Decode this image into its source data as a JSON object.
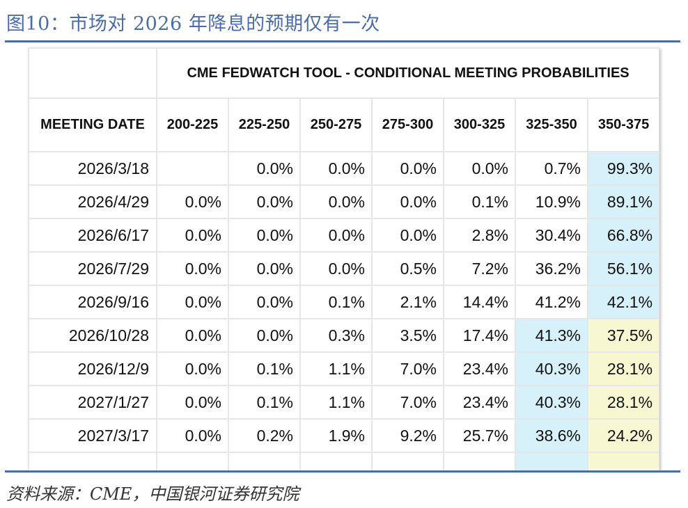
{
  "figure": {
    "title": "图10：市场对 2026 年降息的预期仅有一次",
    "source": "资料来源：CME，中国银河证券研究院"
  },
  "table": {
    "banner": "CME FEDWATCH TOOL - CONDITIONAL MEETING PROBABILITIES",
    "date_header": "MEETING DATE",
    "rate_headers": [
      "200-225",
      "225-250",
      "250-275",
      "275-300",
      "300-325",
      "325-350",
      "350-375"
    ],
    "rows": [
      {
        "date": "2026/3/18",
        "values": [
          "",
          "0.0%",
          "0.0%",
          "0.0%",
          "0.0%",
          "0.7%",
          "99.3%"
        ],
        "highlight": [
          null,
          null,
          null,
          null,
          null,
          null,
          "blue"
        ]
      },
      {
        "date": "2026/4/29",
        "values": [
          "0.0%",
          "0.0%",
          "0.0%",
          "0.0%",
          "0.1%",
          "10.9%",
          "89.1%"
        ],
        "highlight": [
          null,
          null,
          null,
          null,
          null,
          null,
          "blue"
        ]
      },
      {
        "date": "2026/6/17",
        "values": [
          "0.0%",
          "0.0%",
          "0.0%",
          "0.0%",
          "2.8%",
          "30.4%",
          "66.8%"
        ],
        "highlight": [
          null,
          null,
          null,
          null,
          null,
          null,
          "blue"
        ]
      },
      {
        "date": "2026/7/29",
        "values": [
          "0.0%",
          "0.0%",
          "0.0%",
          "0.5%",
          "7.2%",
          "36.2%",
          "56.1%"
        ],
        "highlight": [
          null,
          null,
          null,
          null,
          null,
          null,
          "blue"
        ]
      },
      {
        "date": "2026/9/16",
        "values": [
          "0.0%",
          "0.0%",
          "0.1%",
          "2.1%",
          "14.4%",
          "41.2%",
          "42.1%"
        ],
        "highlight": [
          null,
          null,
          null,
          null,
          null,
          null,
          "blue"
        ]
      },
      {
        "date": "2026/10/28",
        "values": [
          "0.0%",
          "0.0%",
          "0.3%",
          "3.5%",
          "17.4%",
          "41.3%",
          "37.5%"
        ],
        "highlight": [
          null,
          null,
          null,
          null,
          null,
          "blue",
          "yellow"
        ]
      },
      {
        "date": "2026/12/9",
        "values": [
          "0.0%",
          "0.1%",
          "1.1%",
          "7.0%",
          "23.4%",
          "40.3%",
          "28.1%"
        ],
        "highlight": [
          null,
          null,
          null,
          null,
          null,
          "blue",
          "yellow"
        ]
      },
      {
        "date": "2027/1/27",
        "values": [
          "0.0%",
          "0.1%",
          "1.1%",
          "7.0%",
          "23.4%",
          "40.3%",
          "28.1%"
        ],
        "highlight": [
          null,
          null,
          null,
          null,
          null,
          "blue",
          "yellow"
        ]
      },
      {
        "date": "2027/3/17",
        "values": [
          "0.0%",
          "0.2%",
          "1.9%",
          "9.2%",
          "25.7%",
          "38.6%",
          "24.2%"
        ],
        "highlight": [
          null,
          null,
          null,
          null,
          null,
          "blue",
          "yellow"
        ]
      },
      {
        "date": "",
        "values": [
          "",
          "",
          "",
          "",
          "",
          "",
          ""
        ],
        "highlight": [
          null,
          null,
          null,
          null,
          null,
          "blue",
          "yellow"
        ]
      }
    ]
  },
  "colors": {
    "title_blue": "#4a6da7",
    "highlight_blue": "#d7f1fb",
    "highlight_yellow": "#f7f7d2",
    "grid": "#e6e6e6"
  }
}
